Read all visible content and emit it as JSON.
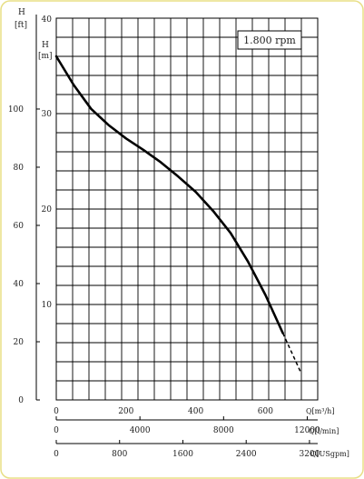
{
  "chart_data": {
    "type": "line",
    "speed_label": "1.800 rpm",
    "left_axis": {
      "unit_label_line1": "H",
      "unit_label_line2": "[ft]",
      "ticks": [
        "0",
        "20",
        "40",
        "60",
        "80",
        "100"
      ],
      "tick_values": [
        0,
        20,
        40,
        60,
        80,
        100
      ]
    },
    "right_axis": {
      "unit_label_line1": "H",
      "unit_label_line2": "[m]",
      "ticks": [
        "10",
        "20",
        "30",
        "40"
      ],
      "tick_values": [
        10,
        20,
        30,
        40
      ],
      "ylim": [
        0,
        40
      ]
    },
    "x_axis_m3h": {
      "label": "Q[m³/h]",
      "ticks": [
        "0",
        "200",
        "400",
        "600"
      ],
      "tick_values": [
        0,
        200,
        400,
        600
      ],
      "xlim": [
        0,
        750
      ]
    },
    "x_axis_lmin": {
      "label": "Q[l/min]",
      "ticks": [
        "0",
        "4000",
        "8000",
        "12000"
      ],
      "tick_values": [
        0,
        4000,
        8000,
        12000
      ]
    },
    "x_axis_usgpm": {
      "label": "Q[USgpm]",
      "ticks": [
        "0",
        "800",
        "1600",
        "2400",
        "3200"
      ],
      "tick_values": [
        0,
        800,
        1600,
        2400,
        3200
      ]
    },
    "series": [
      {
        "x": [
          0,
          50,
          100,
          150,
          200,
          250,
          300,
          350,
          400,
          450,
          500,
          550,
          600,
          650,
          700
        ],
        "y": [
          36.0,
          33.0,
          30.5,
          28.8,
          27.4,
          26.2,
          24.9,
          23.4,
          21.8,
          19.8,
          17.5,
          14.5,
          11.0,
          7.0,
          3.0
        ],
        "solid_until_x": 650
      }
    ]
  }
}
